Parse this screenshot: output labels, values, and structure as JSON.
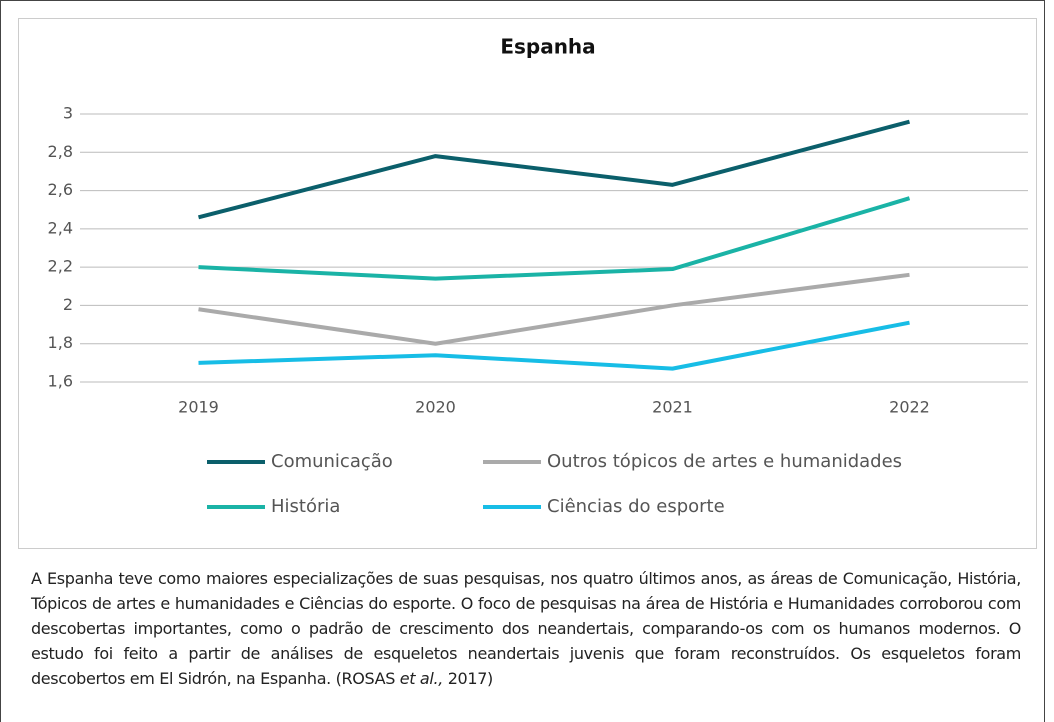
{
  "chart_data": {
    "type": "line",
    "title": "Espanha",
    "categories": [
      "2019",
      "2020",
      "2021",
      "2022"
    ],
    "series": [
      {
        "name": "Comunicação",
        "color": "#0b5f6b",
        "values": [
          2.46,
          2.78,
          2.63,
          2.96
        ]
      },
      {
        "name": "Outros tópicos de artes e humanidades",
        "color": "#aaaaaa",
        "values": [
          1.98,
          1.8,
          2.0,
          2.16
        ]
      },
      {
        "name": "História",
        "color": "#1ab3a6",
        "values": [
          2.2,
          2.14,
          2.19,
          2.56
        ]
      },
      {
        "name": "Ciências do esporte",
        "color": "#17bde6",
        "values": [
          1.7,
          1.74,
          1.67,
          1.91
        ]
      }
    ],
    "ylim": [
      1.6,
      3
    ],
    "yticks": [
      {
        "value": 1.6,
        "label": "1,6"
      },
      {
        "value": 1.8,
        "label": "1,8"
      },
      2,
      {
        "value": 2.2,
        "label": "2,2"
      },
      {
        "value": 2.4,
        "label": "2,4"
      },
      {
        "value": 2.6,
        "label": "2,6"
      },
      {
        "value": 2.8,
        "label": "2,8"
      },
      3
    ],
    "grid": true,
    "legend": "bottom"
  },
  "caption": [
    "A Espanha teve como maiores especializações de suas pesquisas, nos quatro últimos anos, as áreas de Comunicação, História, Tópicos de artes e humanidades e Ciências do esporte. O foco de pesquisas na área de História e Humanidades corroborou com descobertas importantes, como o padrão de crescimento dos neandertais, comparando-os com os humanos modernos. O estudo foi feito a partir de análises de esqueletos neandertais juvenis que foram reconstruídos. Os esqueletos foram descobertos em El Sidrón, na Espanha. (ROSAS ",
    "et al.,",
    " 2017)"
  ]
}
